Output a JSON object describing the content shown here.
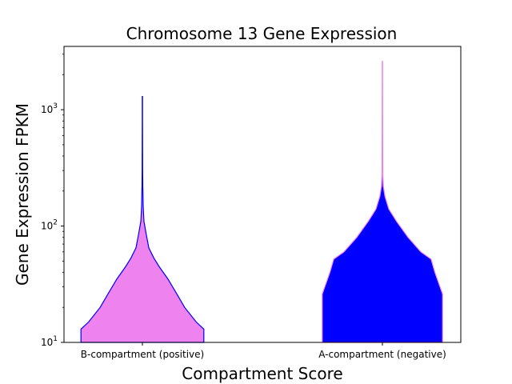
{
  "chart_data": {
    "type": "violin",
    "title": "Chromosome 13 Gene Expression",
    "xlabel": "Compartment Score",
    "ylabel": "Gene Expression FPKM",
    "yscale": "log",
    "ylim": [
      10,
      3500
    ],
    "yticks": [
      {
        "base": "10",
        "exp": "1",
        "value": 10
      },
      {
        "base": "10",
        "exp": "2",
        "value": 100
      },
      {
        "base": "10",
        "exp": "3",
        "value": 1000
      }
    ],
    "categories": [
      "B-compartment (positive)",
      "A-compartment (negative)"
    ],
    "series": [
      {
        "category": "B-compartment (positive)",
        "fill": "#ee82ee",
        "edge": "#0000ff",
        "max": 1300,
        "profile": [
          [
            10,
            0.48
          ],
          [
            13,
            0.48
          ],
          [
            15,
            0.42
          ],
          [
            20,
            0.33
          ],
          [
            26,
            0.27
          ],
          [
            35,
            0.2
          ],
          [
            45,
            0.13
          ],
          [
            53,
            0.09
          ],
          [
            65,
            0.05
          ],
          [
            85,
            0.03
          ],
          [
            110,
            0.012
          ],
          [
            150,
            0.006
          ],
          [
            200,
            0.004
          ],
          [
            220,
            0.003
          ],
          [
            300,
            0.002
          ],
          [
            800,
            0.001
          ],
          [
            1300,
            0.001
          ]
        ]
      },
      {
        "category": "A-compartment (negative)",
        "fill": "#0000ff",
        "edge": "#ee82ee",
        "max": 2600,
        "profile": [
          [
            10,
            0.47
          ],
          [
            26,
            0.47
          ],
          [
            30,
            0.45
          ],
          [
            40,
            0.41
          ],
          [
            52,
            0.38
          ],
          [
            60,
            0.3
          ],
          [
            80,
            0.2
          ],
          [
            110,
            0.11
          ],
          [
            140,
            0.05
          ],
          [
            180,
            0.02
          ],
          [
            220,
            0.007
          ],
          [
            280,
            0.003
          ],
          [
            600,
            0.002
          ],
          [
            2600,
            0.001
          ]
        ]
      }
    ],
    "grid": false,
    "legend": "none"
  }
}
